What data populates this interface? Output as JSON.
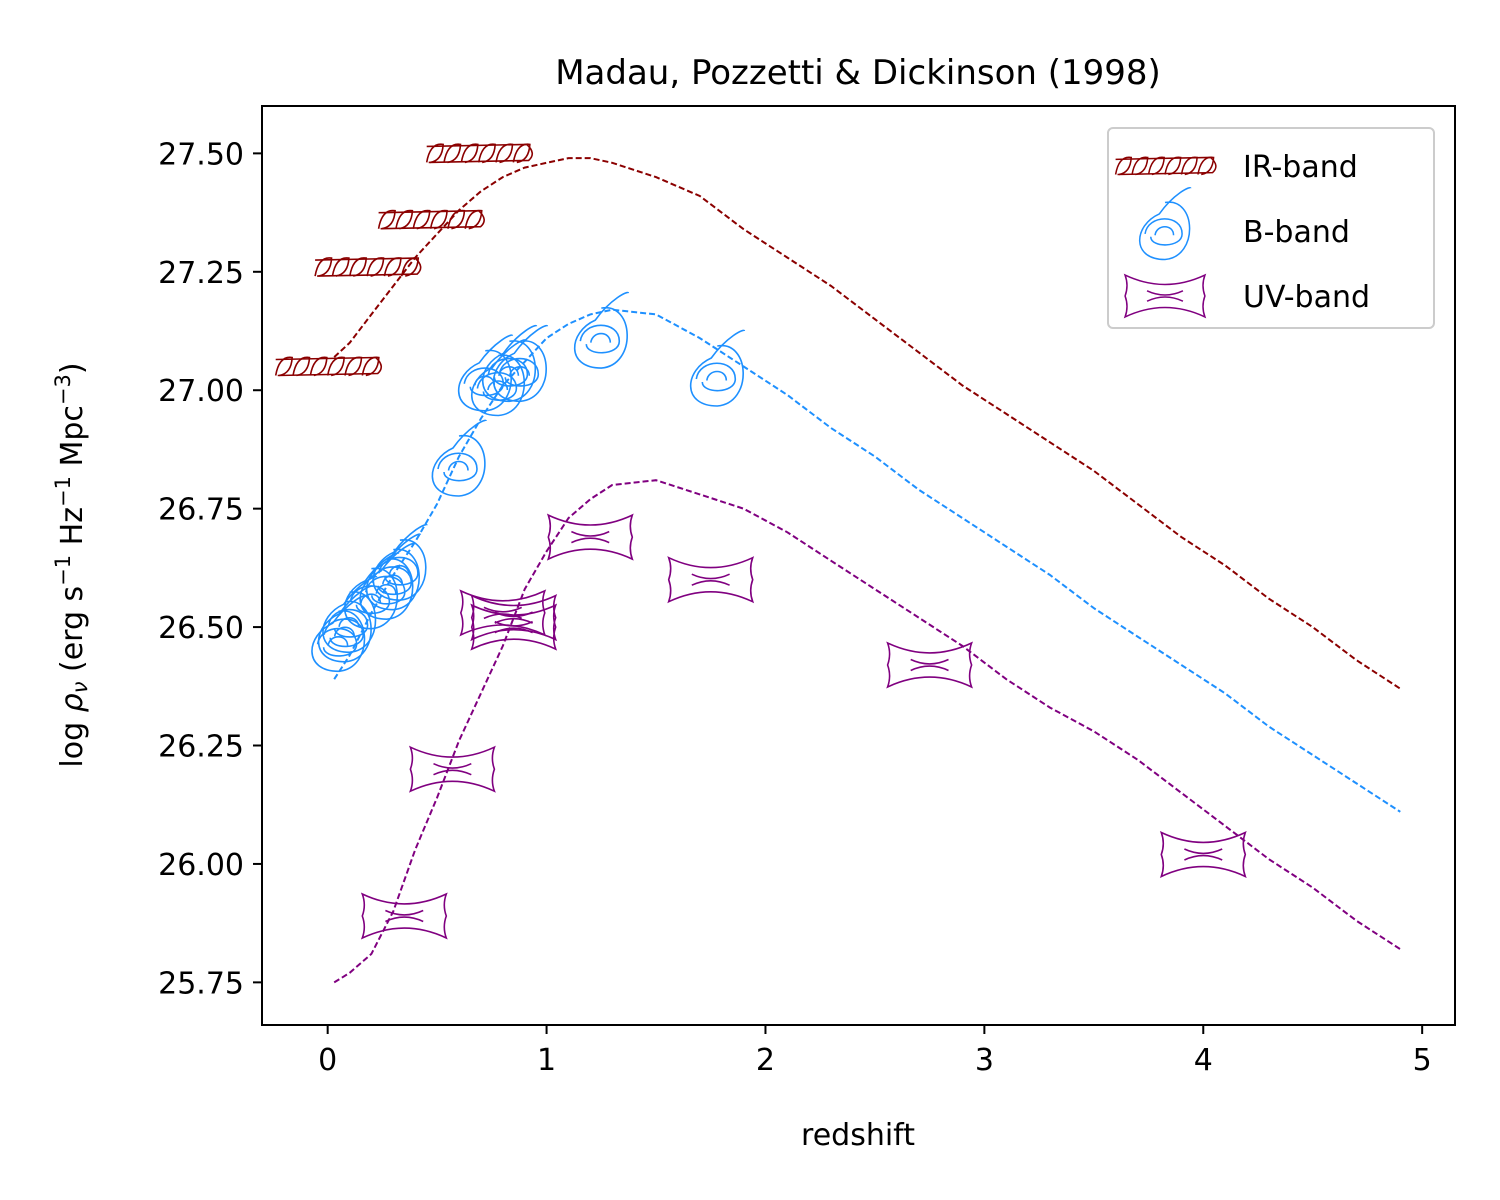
{
  "chart_data": {
    "type": "scatter",
    "title": "Madau, Pozzetti & Dickinson (1998)",
    "xlabel": "redshift",
    "ylabel": {
      "prefix": "log ",
      "rho": "ρ",
      "nu": "ν",
      "units_open": " (erg s",
      "m1": "−1",
      "hz": " Hz",
      "m1b": "−1",
      "mpc": " Mpc",
      "m3": "−3",
      "close": ")"
    },
    "xlim": [
      -0.3,
      5.15
    ],
    "ylim": [
      25.66,
      27.6
    ],
    "xticks": [
      0,
      1,
      2,
      3,
      4,
      5
    ],
    "xtick_labels": [
      "0",
      "1",
      "2",
      "3",
      "4",
      "5"
    ],
    "yticks": [
      25.75,
      26.0,
      26.25,
      26.5,
      26.75,
      27.0,
      27.25,
      27.5
    ],
    "ytick_labels": [
      "25.75",
      "26.00",
      "26.25",
      "26.50",
      "26.75",
      "27.00",
      "27.25",
      "27.50"
    ],
    "grid": false,
    "legend_position": "top-right",
    "series": [
      {
        "name": "IR-band",
        "color": "#8b0000",
        "marker": "fusilli-icon",
        "points": [
          [
            0.0,
            27.05
          ],
          [
            0.18,
            27.26
          ],
          [
            0.47,
            27.36
          ],
          [
            0.69,
            27.5
          ]
        ],
        "model": {
          "x": [
            0.03,
            0.1,
            0.2,
            0.3,
            0.4,
            0.5,
            0.6,
            0.7,
            0.8,
            0.9,
            1.0,
            1.1,
            1.2,
            1.3,
            1.5,
            1.7,
            1.9,
            2.1,
            2.3,
            2.5,
            2.7,
            2.9,
            3.1,
            3.3,
            3.5,
            3.7,
            3.9,
            4.1,
            4.3,
            4.5,
            4.7,
            4.9
          ],
          "y": [
            27.07,
            27.1,
            27.16,
            27.22,
            27.28,
            27.33,
            27.38,
            27.42,
            27.45,
            27.47,
            27.48,
            27.49,
            27.49,
            27.48,
            27.45,
            27.41,
            27.34,
            27.28,
            27.22,
            27.15,
            27.08,
            27.01,
            26.95,
            26.89,
            26.83,
            26.76,
            26.69,
            26.63,
            26.56,
            26.5,
            26.43,
            26.37
          ]
        }
      },
      {
        "name": "B-band",
        "color": "#1e90ff",
        "marker": "lumache-icon",
        "points": [
          [
            0.05,
            26.47
          ],
          [
            0.08,
            26.49
          ],
          [
            0.1,
            26.51
          ],
          [
            0.2,
            26.56
          ],
          [
            0.27,
            26.58
          ],
          [
            0.3,
            26.6
          ],
          [
            0.33,
            26.62
          ],
          [
            0.6,
            26.84
          ],
          [
            0.72,
            27.02
          ],
          [
            0.78,
            27.01
          ],
          [
            0.83,
            27.04
          ],
          [
            0.88,
            27.04
          ],
          [
            1.25,
            27.11
          ],
          [
            1.78,
            27.03
          ]
        ],
        "model": {
          "x": [
            0.03,
            0.1,
            0.2,
            0.3,
            0.4,
            0.5,
            0.6,
            0.7,
            0.8,
            0.9,
            1.0,
            1.1,
            1.2,
            1.3,
            1.5,
            1.7,
            1.9,
            2.1,
            2.3,
            2.5,
            2.7,
            2.9,
            3.1,
            3.3,
            3.5,
            3.7,
            3.9,
            4.1,
            4.3,
            4.5,
            4.7,
            4.9
          ],
          "y": [
            26.39,
            26.44,
            26.53,
            26.61,
            26.68,
            26.76,
            26.86,
            26.94,
            27.01,
            27.06,
            27.11,
            27.14,
            27.16,
            27.17,
            27.16,
            27.11,
            27.05,
            26.99,
            26.92,
            26.86,
            26.79,
            26.73,
            26.67,
            26.61,
            26.54,
            26.48,
            26.42,
            26.36,
            26.29,
            26.23,
            26.17,
            26.11
          ]
        }
      },
      {
        "name": "UV-band",
        "color": "#800080",
        "marker": "farfalle-icon",
        "points": [
          [
            0.35,
            25.89
          ],
          [
            0.57,
            26.2
          ],
          [
            0.8,
            26.53
          ],
          [
            0.85,
            26.5
          ],
          [
            0.85,
            26.52
          ],
          [
            1.2,
            26.69
          ],
          [
            1.75,
            26.6
          ],
          [
            2.75,
            26.42
          ],
          [
            4.0,
            26.02
          ]
        ],
        "model": {
          "x": [
            0.03,
            0.1,
            0.2,
            0.3,
            0.4,
            0.5,
            0.6,
            0.7,
            0.8,
            0.9,
            1.0,
            1.1,
            1.2,
            1.3,
            1.5,
            1.7,
            1.9,
            2.1,
            2.3,
            2.5,
            2.7,
            2.9,
            3.1,
            3.3,
            3.5,
            3.7,
            3.9,
            4.1,
            4.3,
            4.5,
            4.7,
            4.9
          ],
          "y": [
            25.75,
            25.77,
            25.81,
            25.9,
            26.03,
            26.14,
            26.26,
            26.36,
            26.46,
            26.58,
            26.66,
            26.73,
            26.77,
            26.8,
            26.81,
            26.78,
            26.75,
            26.7,
            26.64,
            26.58,
            26.52,
            26.46,
            26.39,
            26.33,
            26.28,
            26.22,
            26.15,
            26.08,
            26.01,
            25.95,
            25.88,
            25.82
          ]
        }
      }
    ]
  }
}
